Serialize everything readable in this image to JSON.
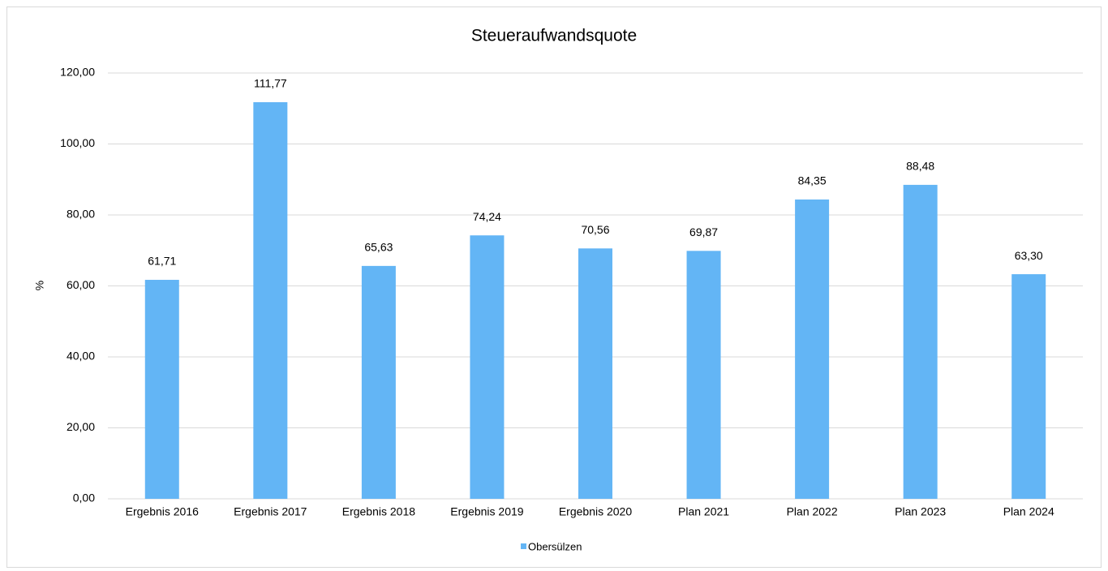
{
  "chart_data": {
    "type": "bar",
    "title": "Steueraufwandsquote",
    "y_label": "%",
    "categories": [
      "Ergebnis 2016",
      "Ergebnis 2017",
      "Ergebnis 2018",
      "Ergebnis 2019",
      "Ergebnis 2020",
      "Plan 2021",
      "Plan 2022",
      "Plan 2023",
      "Plan 2024"
    ],
    "series": [
      {
        "name": "Obersülzen",
        "color": "#63b5f5",
        "values": [
          61.71,
          111.77,
          65.63,
          74.24,
          70.56,
          69.87,
          84.35,
          88.48,
          63.3
        ],
        "value_labels": [
          "61,71",
          "111,77",
          "65,63",
          "74,24",
          "70,56",
          "69,87",
          "84,35",
          "88,48",
          "63,30"
        ]
      }
    ],
    "ylim": [
      0,
      120
    ],
    "yticks": [
      {
        "value": 0,
        "label": "0,00"
      },
      {
        "value": 20,
        "label": "20,00"
      },
      {
        "value": 40,
        "label": "40,00"
      },
      {
        "value": 60,
        "label": "60,00"
      },
      {
        "value": 80,
        "label": "80,00"
      },
      {
        "value": 100,
        "label": "100,00"
      },
      {
        "value": 120,
        "label": "120,00"
      }
    ],
    "grid": true,
    "legend": "bottom"
  }
}
